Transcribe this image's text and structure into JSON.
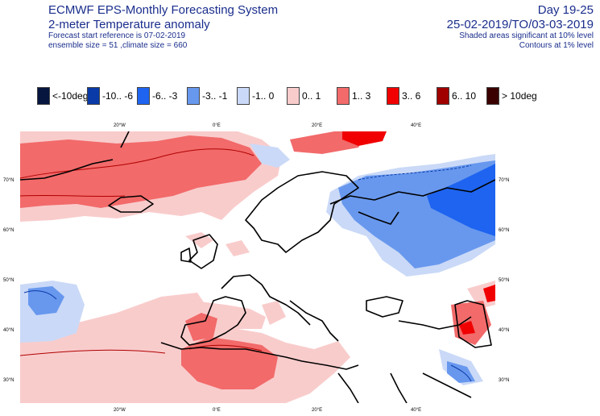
{
  "header": {
    "title": "ECMWF EPS-Monthly Forecasting System",
    "subtitle": "2-meter Temperature anomaly",
    "forecast_ref": "Forecast start reference is 07-02-2019",
    "ensemble": "ensemble size = 51  ,climate size = 660",
    "day_range": "Day 19-25",
    "date_range": "25-02-2019/TO/03-03-2019",
    "shaded_note": "Shaded areas significant at 10% level",
    "contour_note": "Contours at 1% level"
  },
  "legend": [
    {
      "label": "<-10deg",
      "color": "#06163f"
    },
    {
      "label": "-10.. -6",
      "color": "#0a3aa8"
    },
    {
      "label": "-6.. -3",
      "color": "#1e64f0"
    },
    {
      "label": "-3.. -1",
      "color": "#6898ee"
    },
    {
      "label": "-1..  0",
      "color": "#cad9f7"
    },
    {
      "label": "0..  1",
      "color": "#f9cccc"
    },
    {
      "label": "1..  3",
      "color": "#f26a6a"
    },
    {
      "label": "3..  6",
      "color": "#f00000"
    },
    {
      "label": "6..  10",
      "color": "#a00000"
    },
    {
      "label": "> 10deg",
      "color": "#3a0000"
    }
  ],
  "map": {
    "lon_labels": [
      "20°W",
      "0°E",
      "20°E",
      "40°E"
    ],
    "lat_labels": [
      "70°N",
      "60°N",
      "50°N",
      "40°N",
      "30°N"
    ]
  }
}
